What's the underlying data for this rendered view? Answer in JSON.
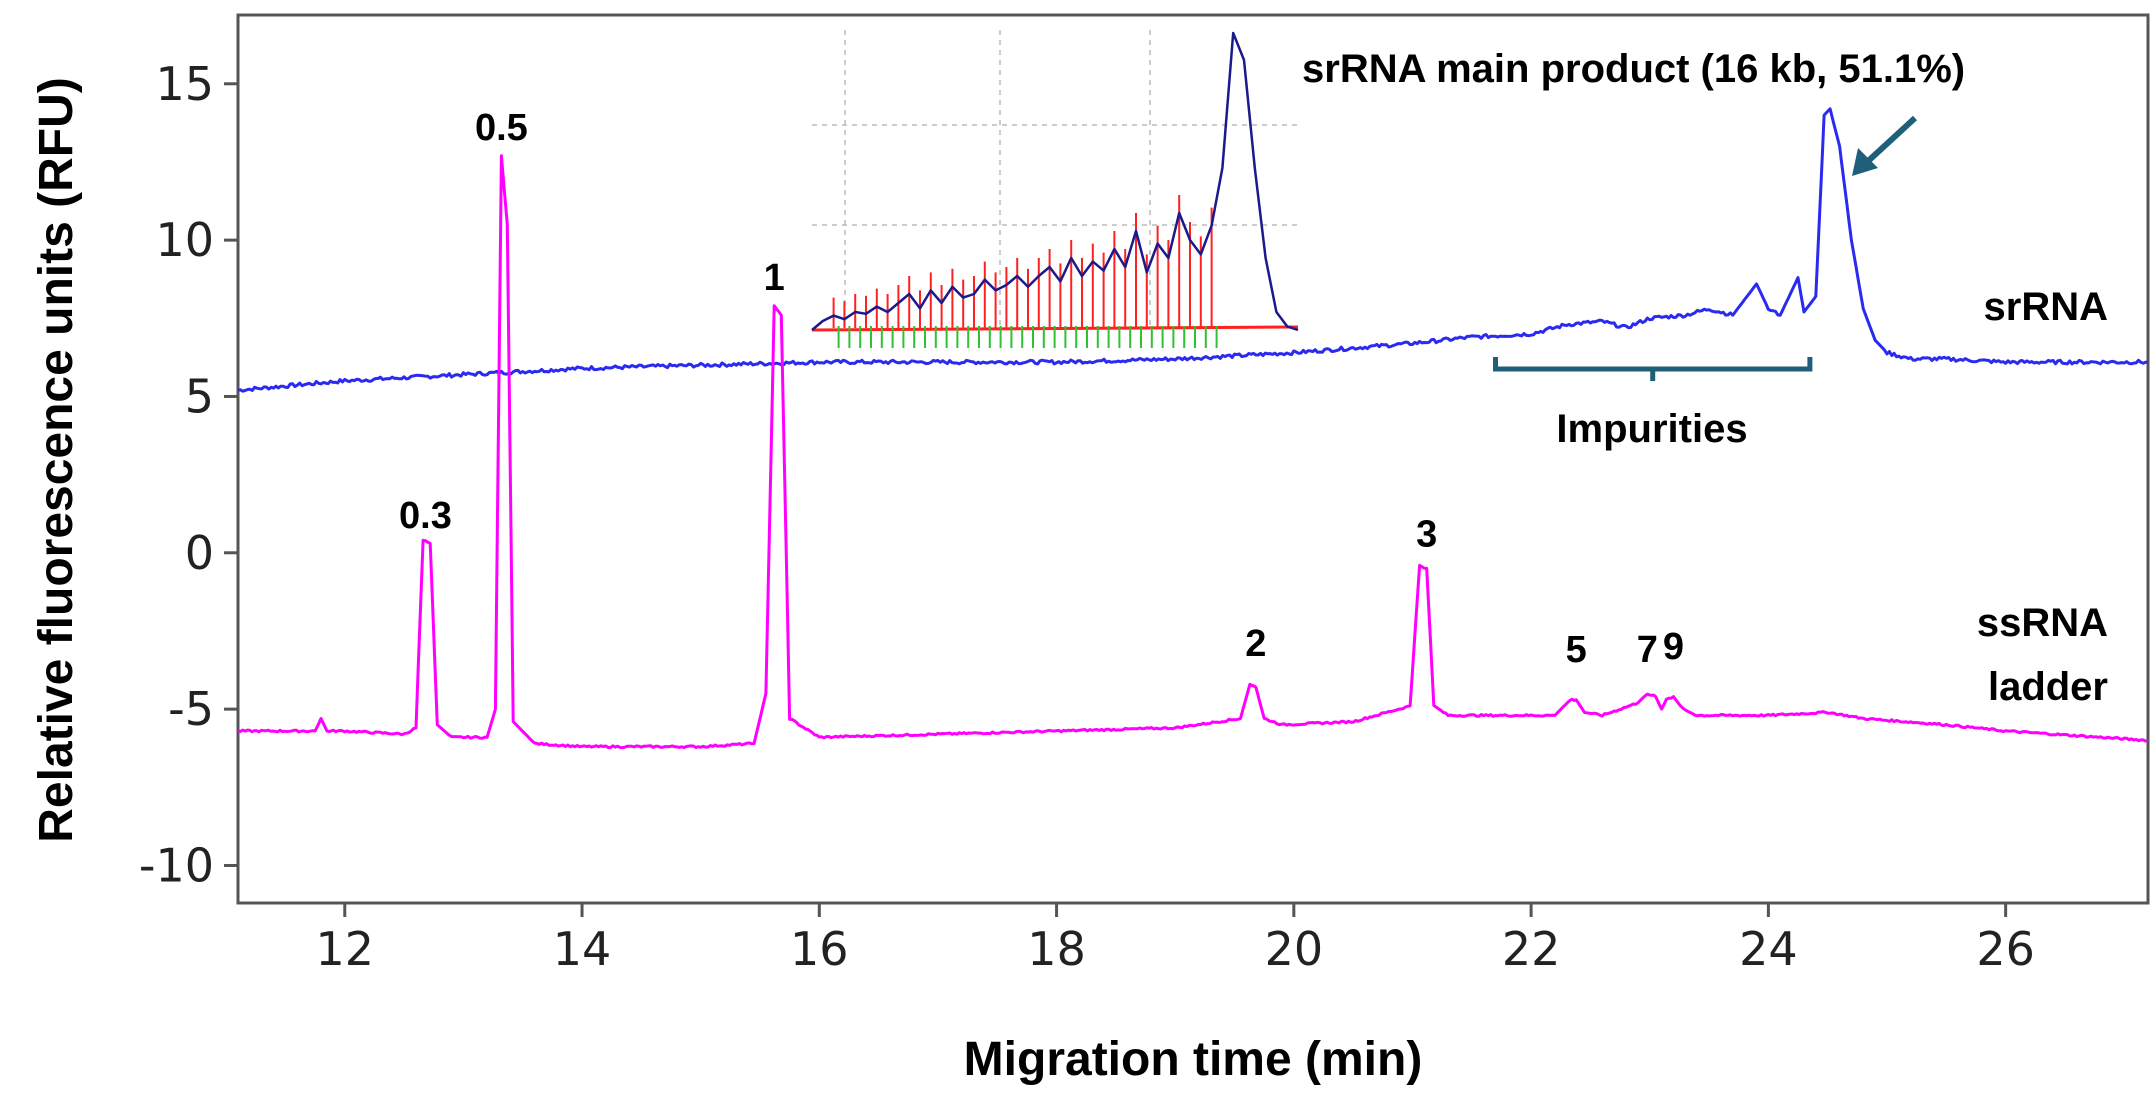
{
  "chart_data": {
    "type": "line",
    "xlabel": "Migration time (min)",
    "ylabel": "Relative fluorescence units (RFU)",
    "xlim": [
      11.1,
      27.2
    ],
    "ylim": [
      -11.2,
      17.2
    ],
    "x_ticks": [
      12,
      14,
      16,
      18,
      20,
      22,
      24,
      26
    ],
    "x_tick_labels": [
      "12",
      "14",
      "16",
      "18",
      "20",
      "22",
      "24",
      "26"
    ],
    "y_ticks": [
      15,
      10,
      5,
      0,
      -5,
      -10
    ],
    "y_tick_labels": [
      "15",
      "10",
      "5",
      "0",
      "-5",
      "-10"
    ],
    "grid": false,
    "series": [
      {
        "name": "srRNA",
        "color": "#2a2af0",
        "x": [
          11.1,
          12.0,
          13.0,
          14.0,
          15.0,
          16.0,
          17.0,
          18.0,
          19.0,
          20.0,
          21.0,
          21.5,
          22.0,
          22.3,
          22.6,
          22.8,
          23.0,
          23.3,
          23.5,
          23.7,
          23.9,
          24.0,
          24.1,
          24.25,
          24.3,
          24.4,
          24.47,
          24.52,
          24.6,
          24.7,
          24.8,
          24.9,
          25.0,
          25.2,
          25.5,
          26.0,
          27.2
        ],
        "y": [
          5.2,
          5.5,
          5.7,
          5.9,
          6.0,
          6.1,
          6.1,
          6.1,
          6.2,
          6.4,
          6.7,
          6.9,
          7.0,
          7.3,
          7.4,
          7.2,
          7.5,
          7.6,
          7.8,
          7.6,
          8.6,
          7.8,
          7.6,
          8.8,
          7.7,
          8.2,
          14.0,
          14.2,
          13.0,
          10.0,
          7.8,
          6.8,
          6.4,
          6.2,
          6.2,
          6.1,
          6.1
        ]
      },
      {
        "name": "ssRNA ladder",
        "color": "#ff00ff",
        "x": [
          11.1,
          11.75,
          11.8,
          11.85,
          12.0,
          12.5,
          12.6,
          12.66,
          12.72,
          12.78,
          12.9,
          13.2,
          13.27,
          13.32,
          13.37,
          13.42,
          13.6,
          14.0,
          15.0,
          15.45,
          15.55,
          15.62,
          15.68,
          15.75,
          16.0,
          17.0,
          18.0,
          19.0,
          19.55,
          19.63,
          19.68,
          19.75,
          19.9,
          20.5,
          20.98,
          21.06,
          21.12,
          21.18,
          21.3,
          21.6,
          22.2,
          22.33,
          22.38,
          22.45,
          22.6,
          22.9,
          22.98,
          23.05,
          23.1,
          23.14,
          23.2,
          23.28,
          23.4,
          24.0,
          24.5,
          24.8,
          25.5,
          26.0,
          27.2
        ],
        "y": [
          -5.7,
          -5.7,
          -5.3,
          -5.7,
          -5.7,
          -5.8,
          -5.6,
          0.4,
          0.3,
          -5.5,
          -5.9,
          -5.9,
          -5.0,
          12.7,
          10.5,
          -5.4,
          -6.1,
          -6.2,
          -6.2,
          -6.1,
          -4.5,
          7.9,
          7.6,
          -5.3,
          -5.9,
          -5.8,
          -5.7,
          -5.6,
          -5.3,
          -4.2,
          -4.3,
          -5.3,
          -5.5,
          -5.4,
          -4.9,
          -0.4,
          -0.5,
          -4.9,
          -5.2,
          -5.2,
          -5.2,
          -4.7,
          -4.7,
          -5.1,
          -5.2,
          -4.8,
          -4.5,
          -4.6,
          -5.0,
          -4.7,
          -4.6,
          -5.0,
          -5.2,
          -5.2,
          -5.1,
          -5.3,
          -5.5,
          -5.7,
          -6.0
        ]
      }
    ],
    "peak_labels": [
      {
        "text": "0.3",
        "x": 12.68,
        "y": 0.8
      },
      {
        "text": "0.5",
        "x": 13.32,
        "y": 13.2
      },
      {
        "text": "1",
        "x": 15.62,
        "y": 8.4
      },
      {
        "text": "2",
        "x": 19.68,
        "y": -3.3
      },
      {
        "text": "3",
        "x": 21.12,
        "y": 0.2
      },
      {
        "text": "5",
        "x": 22.38,
        "y": -3.5
      },
      {
        "text": "7",
        "x": 22.98,
        "y": -3.5
      },
      {
        "text": "9",
        "x": 23.2,
        "y": -3.4
      }
    ],
    "series_labels": [
      {
        "lines": [
          "srRNA"
        ]
      },
      {
        "lines": [
          "ssRNA",
          "ladder"
        ]
      }
    ],
    "annotations": {
      "main_product": "srRNA main product (16 kb, 51.1%)",
      "impurities": "Impurities",
      "impurities_range": [
        21.7,
        24.35
      ],
      "arrow_color": "#1f5f7a"
    },
    "inset": {
      "description_colors": {
        "trace": "#1a1a8a",
        "baseline": "#ff2020",
        "marks_green": "#30c030",
        "marks_red": "#ff2020",
        "grid": "#bbbbbb"
      },
      "trace_y": [
        0.0,
        0.05,
        0.08,
        0.06,
        0.1,
        0.09,
        0.13,
        0.1,
        0.15,
        0.2,
        0.12,
        0.22,
        0.15,
        0.24,
        0.18,
        0.2,
        0.28,
        0.22,
        0.25,
        0.3,
        0.24,
        0.3,
        0.35,
        0.27,
        0.4,
        0.3,
        0.38,
        0.33,
        0.45,
        0.35,
        0.55,
        0.32,
        0.48,
        0.4,
        0.65,
        0.5,
        0.42,
        0.58,
        0.9,
        1.65,
        1.5,
        0.9,
        0.4,
        0.1,
        0.02,
        0.0
      ]
    }
  }
}
